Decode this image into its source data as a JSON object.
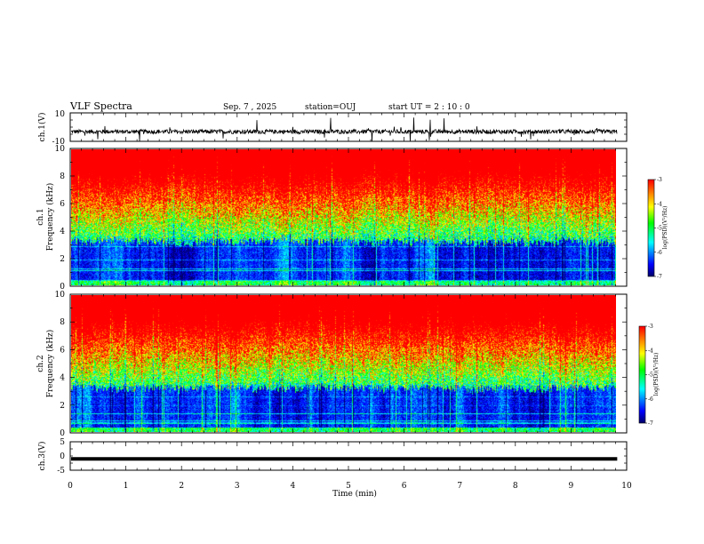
{
  "header": {
    "title": "VLF Spectra",
    "date": "Sep. 7 , 2025",
    "station": "station=OUJ",
    "start": "start  UT =   2 : 10 : 0"
  },
  "colors": {
    "spec_low": "#00007a",
    "spec_mid": "#00ffff",
    "spec_green": "#00ff00",
    "spec_yellow": "#ffff00",
    "spec_high": "#ff0000",
    "trace": "#000000"
  },
  "chart_data": [
    {
      "type": "line",
      "name": "ch1-waveform",
      "ylabel": "ch.1(V)",
      "ylim": [
        -10,
        10
      ],
      "yticks": [
        "10",
        "-10"
      ],
      "baseline": -3.2,
      "noise_amplitude": 1.5,
      "spikes_max": 10
    },
    {
      "type": "heatmap",
      "name": "ch1-spectrogram",
      "ylabel": "ch.1\nFrequency (kHz)",
      "ylim": [
        0,
        10
      ],
      "yticks": [
        "0",
        "2",
        "4",
        "6",
        "8",
        "10"
      ],
      "cb_label": "log(PSD)(V²/Hz)",
      "cb_range": [
        -7,
        -3
      ],
      "cb_ticks": [
        "-3",
        "-4",
        "-5",
        "-6",
        "-7"
      ]
    },
    {
      "type": "heatmap",
      "name": "ch2-spectrogram",
      "ylabel": "ch.2\nFrequency (kHz)",
      "ylim": [
        0,
        10
      ],
      "yticks": [
        "0",
        "2",
        "4",
        "6",
        "8",
        "10"
      ],
      "cb_label": "log(PSD)(V²/Hz)",
      "cb_range": [
        -7,
        -3
      ],
      "cb_ticks": [
        "-3",
        "-4",
        "-5",
        "-6",
        "-7"
      ]
    },
    {
      "type": "line",
      "name": "ch3-waveform",
      "ylabel": "ch.3(V)",
      "ylim": [
        -5,
        5
      ],
      "yticks": [
        "5",
        "0",
        "-5"
      ],
      "value": -1.0
    }
  ],
  "xaxis": {
    "label": "Time (min)",
    "xlim": [
      0,
      10
    ],
    "ticks": [
      "0",
      "1",
      "2",
      "3",
      "4",
      "5",
      "6",
      "7",
      "8",
      "9",
      "10"
    ],
    "data_end": 9.83
  }
}
